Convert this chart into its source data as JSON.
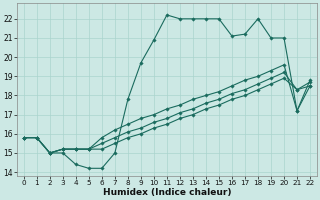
{
  "bg_color": "#cce8e4",
  "grid_color": "#aad4ce",
  "line_color": "#1a6b5e",
  "xlabel": "Humidex (Indice chaleur)",
  "xlim": [
    -0.5,
    22.5
  ],
  "ylim": [
    13.8,
    22.8
  ],
  "yticks": [
    14,
    15,
    16,
    17,
    18,
    19,
    20,
    21,
    22
  ],
  "xticks": [
    0,
    1,
    2,
    3,
    4,
    5,
    6,
    7,
    8,
    9,
    10,
    11,
    12,
    13,
    14,
    15,
    16,
    17,
    18,
    19,
    20,
    21,
    22
  ],
  "series": [
    {
      "x": [
        0,
        1,
        2,
        3,
        4,
        5,
        6,
        7,
        8,
        9,
        10,
        11,
        12,
        13,
        14,
        15,
        16,
        17,
        18,
        19,
        20,
        21,
        22
      ],
      "y": [
        15.8,
        15.8,
        15.0,
        15.0,
        14.4,
        14.2,
        14.2,
        15.0,
        17.8,
        19.7,
        20.9,
        22.2,
        22.0,
        22.0,
        22.0,
        22.0,
        21.1,
        21.2,
        22.0,
        21.0,
        21.0,
        17.2,
        18.5
      ]
    },
    {
      "x": [
        0,
        1,
        2,
        3,
        4,
        5,
        6,
        7,
        8,
        9,
        10,
        11,
        12,
        13,
        14,
        15,
        16,
        17,
        18,
        19,
        20,
        21,
        22
      ],
      "y": [
        15.8,
        15.8,
        15.0,
        15.2,
        15.2,
        15.2,
        15.8,
        16.2,
        16.5,
        16.8,
        17.0,
        17.3,
        17.5,
        17.8,
        18.0,
        18.2,
        18.5,
        18.8,
        19.0,
        19.3,
        19.6,
        17.2,
        18.8
      ]
    },
    {
      "x": [
        0,
        1,
        2,
        3,
        4,
        5,
        6,
        7,
        8,
        9,
        10,
        11,
        12,
        13,
        14,
        15,
        16,
        17,
        18,
        19,
        20,
        21,
        22
      ],
      "y": [
        15.8,
        15.8,
        15.0,
        15.2,
        15.2,
        15.2,
        15.5,
        15.8,
        16.1,
        16.3,
        16.6,
        16.8,
        17.1,
        17.3,
        17.6,
        17.8,
        18.1,
        18.3,
        18.6,
        18.9,
        19.2,
        18.3,
        18.5
      ]
    },
    {
      "x": [
        0,
        1,
        2,
        3,
        4,
        5,
        6,
        7,
        8,
        9,
        10,
        11,
        12,
        13,
        14,
        15,
        16,
        17,
        18,
        19,
        20,
        21,
        22
      ],
      "y": [
        15.8,
        15.8,
        15.0,
        15.2,
        15.2,
        15.2,
        15.2,
        15.5,
        15.8,
        16.0,
        16.3,
        16.5,
        16.8,
        17.0,
        17.3,
        17.5,
        17.8,
        18.0,
        18.3,
        18.6,
        18.9,
        18.3,
        18.7
      ]
    }
  ]
}
